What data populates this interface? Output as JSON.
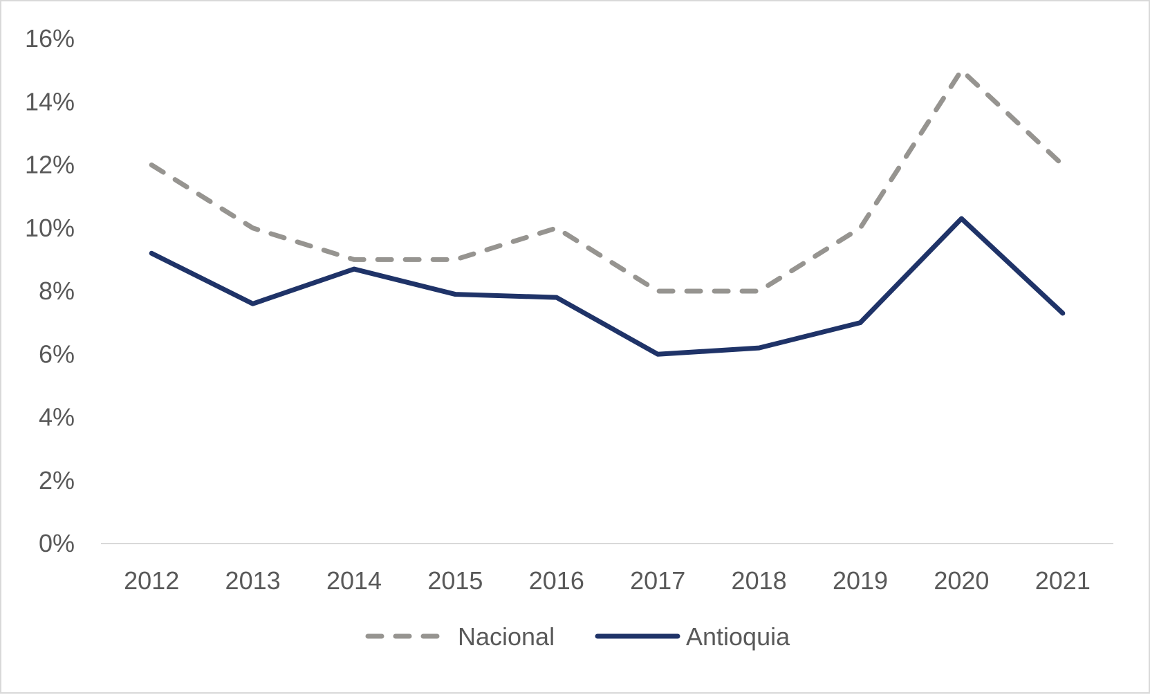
{
  "chart_data": {
    "type": "line",
    "title": "",
    "xlabel": "",
    "ylabel": "",
    "categories": [
      "2012",
      "2013",
      "2014",
      "2015",
      "2016",
      "2017",
      "2018",
      "2019",
      "2020",
      "2021"
    ],
    "series": [
      {
        "name": "Nacional",
        "values": [
          12.0,
          10.0,
          9.0,
          9.0,
          10.0,
          8.0,
          8.0,
          10.0,
          15.0,
          12.0
        ],
        "color": "#969490",
        "style": "dashed"
      },
      {
        "name": "Antioquia",
        "values": [
          9.2,
          7.6,
          8.7,
          7.9,
          7.8,
          6.0,
          6.2,
          7.0,
          10.3,
          7.3
        ],
        "color": "#1f3368",
        "style": "solid"
      }
    ],
    "ylim": [
      0,
      16
    ],
    "y_ticks": [
      "0%",
      "2%",
      "4%",
      "6%",
      "8%",
      "10%",
      "12%",
      "14%",
      "16%"
    ],
    "y_unit": "%",
    "grid": false,
    "legend_position": "bottom"
  }
}
